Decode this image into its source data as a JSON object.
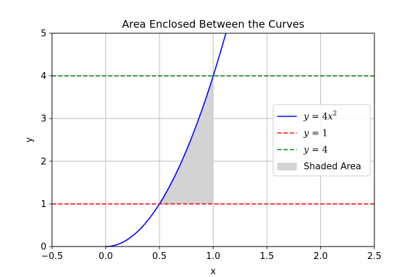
{
  "chart_data": {
    "type": "line",
    "title": "Area Enclosed Between the Curves",
    "xlabel": "x",
    "ylabel": "y",
    "xlim": [
      -0.5,
      2.5
    ],
    "ylim": [
      0,
      5
    ],
    "grid": true,
    "legend_position": "center-right",
    "xticks": [
      "−0.5",
      "0.0",
      "0.5",
      "1.0",
      "1.5",
      "2.0",
      "2.5"
    ],
    "xtick_values": [
      -0.5,
      0.0,
      0.5,
      1.0,
      1.5,
      2.0,
      2.5
    ],
    "yticks": [
      "0",
      "1",
      "2",
      "3",
      "4",
      "5"
    ],
    "ytick_values": [
      0,
      1,
      2,
      3,
      4,
      5
    ],
    "series": [
      {
        "name": "y = 4x²",
        "kind": "curve",
        "style": "solid",
        "color": "#0000ff",
        "x": [
          0,
          0.1,
          0.2,
          0.3,
          0.4,
          0.5,
          0.6,
          0.7,
          0.8,
          0.9,
          1.0,
          1.1,
          1.118
        ],
        "y": [
          0,
          0.04,
          0.16,
          0.36,
          0.64,
          1.0,
          1.44,
          1.96,
          2.56,
          3.24,
          4.0,
          4.84,
          5.0
        ]
      },
      {
        "name": "y = 1",
        "kind": "hline",
        "style": "dashed",
        "color": "#ff0000",
        "y": 1
      },
      {
        "name": "y = 4",
        "kind": "hline",
        "style": "dashed",
        "color": "#008000",
        "y": 4
      }
    ],
    "shaded_area": {
      "name": "Shaded Area",
      "color": "#d3d3d3",
      "x_range": [
        0.5,
        1.0
      ],
      "lower": "y = 1",
      "upper": "y = 4x²"
    },
    "legend": [
      {
        "label_prefix": "y",
        "label_mid": " = 4",
        "label_var": "x",
        "label_sup": "2",
        "marker": "solid-line",
        "color": "#0000ff"
      },
      {
        "label_prefix": "y",
        "label_mid": " = 1",
        "label_var": "",
        "label_sup": "",
        "marker": "dashed-line",
        "color": "#ff0000"
      },
      {
        "label_prefix": "y",
        "label_mid": " = 4",
        "label_var": "",
        "label_sup": "",
        "marker": "dashed-line",
        "color": "#008000"
      },
      {
        "label_plain": "Shaded Area",
        "marker": "patch",
        "color": "#d3d3d3"
      }
    ]
  }
}
